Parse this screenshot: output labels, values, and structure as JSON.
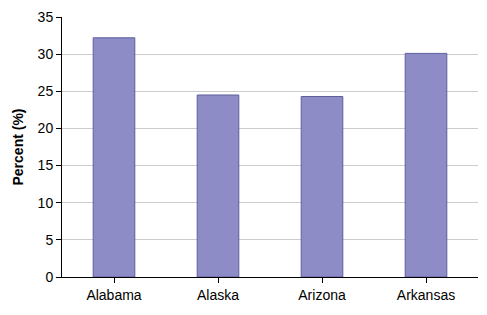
{
  "chart_data": {
    "type": "bar",
    "y_label": "Percent (%)",
    "categories": [
      "Alabama",
      "Alaska",
      "Arizona",
      "Arkansas"
    ],
    "values": [
      32.2,
      24.5,
      24.3,
      30.1
    ],
    "color": "#8e8cc6",
    "ylim": [
      0,
      35
    ],
    "yticks": [
      0,
      5,
      10,
      15,
      20,
      25,
      30,
      35
    ],
    "grid": true
  }
}
